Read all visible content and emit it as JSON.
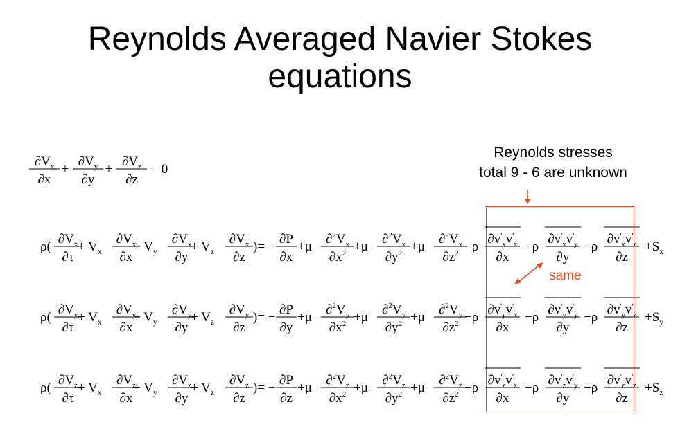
{
  "title": {
    "line1": "Reynolds Averaged Navier Stokes",
    "line2": "equations"
  },
  "annotation": {
    "stress_line1": "Reynolds stresses",
    "stress_line2": "total 9  - 6 are unknown",
    "same_label": "same",
    "accent_color": "#e8481c"
  },
  "continuity": {
    "terms": [
      "V_x/x",
      "V_y/y",
      "V_z/z"
    ],
    "rhs": "0"
  },
  "momentum": [
    {
      "component": "x",
      "source": "S_x"
    },
    {
      "component": "y",
      "source": "S_y"
    },
    {
      "component": "z",
      "source": "S_z"
    }
  ],
  "symbols": {
    "density": "ρ",
    "viscosity": "μ",
    "time": "τ",
    "partial": "∂",
    "pressure": "P"
  }
}
